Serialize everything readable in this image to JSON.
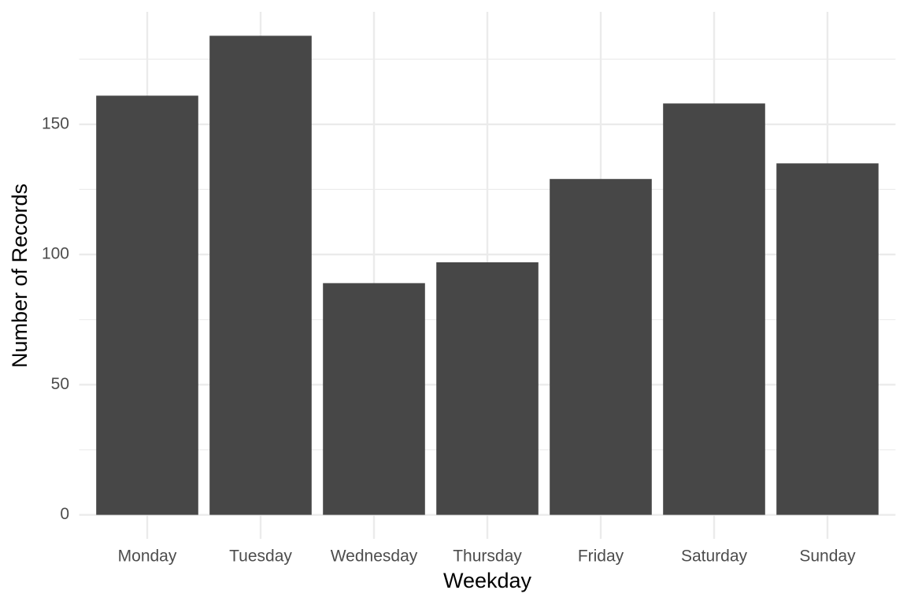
{
  "chart_data": {
    "type": "bar",
    "x_label": "Weekday",
    "y_label": "Number of Records",
    "categories": [
      "Monday",
      "Tuesday",
      "Wednesday",
      "Thursday",
      "Friday",
      "Saturday",
      "Sunday"
    ],
    "values": [
      161,
      184,
      89,
      97,
      129,
      158,
      135
    ],
    "color": "#474747",
    "ylim": [
      -9.2,
      193.2
    ],
    "yticks": [
      0,
      50,
      100,
      150
    ],
    "minor_yticks": [
      25,
      75,
      125,
      175
    ],
    "grid": true
  }
}
